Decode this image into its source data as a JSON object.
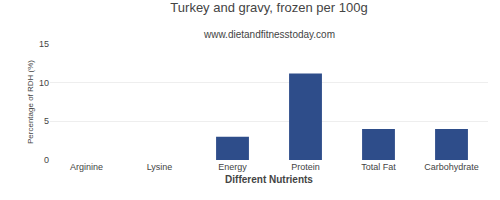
{
  "chart_data": {
    "type": "bar",
    "title": "Turkey and gravy, frozen per 100g",
    "subtitle": "www.dietandfitnesstoday.com",
    "xlabel": "Different Nutrients",
    "ylabel": "Percentage of RDH (%)",
    "categories": [
      "Arginine",
      "Lysine",
      "Energy",
      "Protein",
      "Total Fat",
      "Carbohydrate"
    ],
    "values": [
      0.0,
      0.0,
      3.0,
      11.2,
      4.0,
      4.0
    ],
    "color": "#2e4d8a",
    "ylim": [
      0,
      15
    ],
    "yticks": [
      0,
      5,
      10,
      15
    ],
    "grid": true
  }
}
